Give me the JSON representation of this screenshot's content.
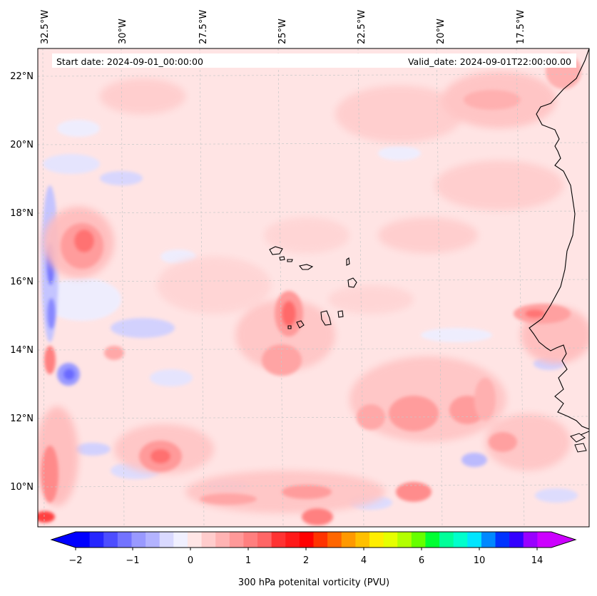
{
  "header": {
    "start_date": "Start date: 2024-09-01_00:00:00",
    "valid_date": "Valid_date: 2024-09-01T22:00:00.00"
  },
  "lon_labels": [
    "32.5°W",
    "30°W",
    "27.5°W",
    "25°W",
    "22.5°W",
    "20°W",
    "17.5°W"
  ],
  "lat_labels": [
    "22°N",
    "20°N",
    "18°N",
    "16°N",
    "14°N",
    "12°N",
    "10°N"
  ],
  "colorbar": {
    "label": "300 hPa potenital vorticity (PVU)",
    "ticks": [
      "−2",
      "−1",
      "0",
      "1",
      "2",
      "4",
      "6",
      "10",
      "14"
    ],
    "colors": [
      "#0000ff",
      "#2626ff",
      "#4d4dff",
      "#7373ff",
      "#9999ff",
      "#b3b3ff",
      "#d9d9ff",
      "#f0f0ff",
      "#ffe6e6",
      "#ffcccc",
      "#ffb3b3",
      "#ff9999",
      "#ff7f7f",
      "#ff6666",
      "#ff3333",
      "#ff1a1a",
      "#ff0000",
      "#ff3300",
      "#ff6600",
      "#ff9900",
      "#ffc000",
      "#ffee00",
      "#e6ff00",
      "#b3ff00",
      "#66ff00",
      "#00ff33",
      "#00ff99",
      "#00ffcc",
      "#00e5ff",
      "#0088ff",
      "#0033ff",
      "#3300ff",
      "#9900ff",
      "#cc00ff"
    ],
    "extend_low_color": "#0000ff",
    "extend_high_color": "#cc00ff"
  },
  "colors": {
    "background_field": "#ffe4e4",
    "coast": "#000000",
    "grid": "#c8c8c8"
  }
}
